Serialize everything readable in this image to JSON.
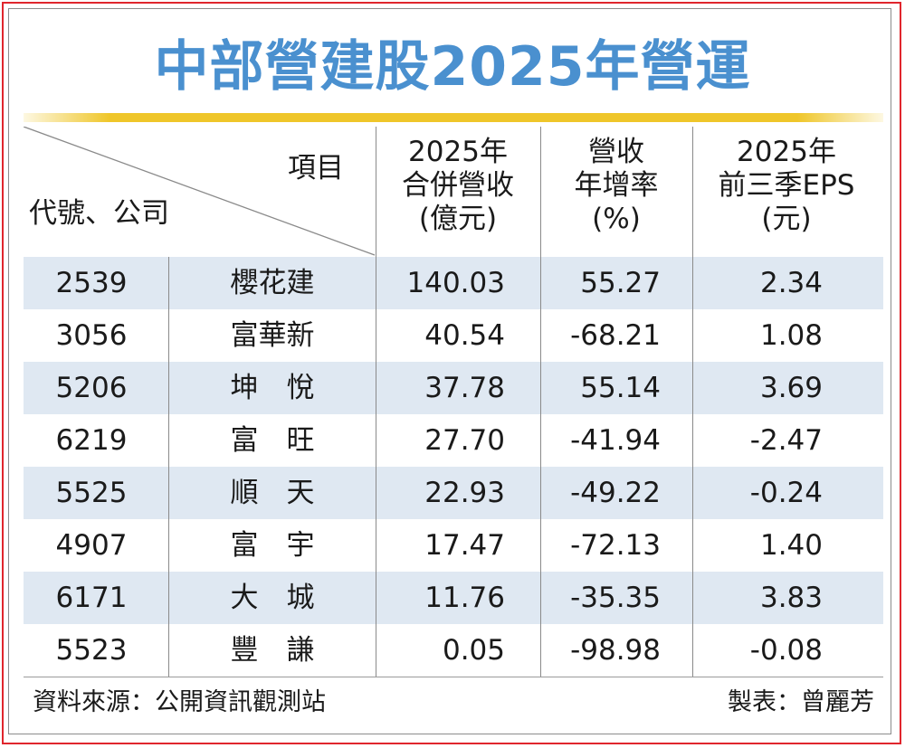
{
  "title": "中部營建股2025年營運",
  "header": {
    "corner_top": "項目",
    "corner_bottom": "代號、公司",
    "col_revenue": [
      "2025年",
      "合併營收",
      "(億元)"
    ],
    "col_growth": [
      "營收",
      "年增率",
      "(%)"
    ],
    "col_eps": [
      "2025年",
      "前三季EPS",
      "(元)"
    ]
  },
  "chart_data": {
    "type": "table",
    "title": "中部營建股2025年營運",
    "columns": [
      "代號",
      "公司",
      "2025年合併營收(億元)",
      "營收年增率(%)",
      "2025年前三季EPS(元)"
    ],
    "rows": [
      {
        "code": "2539",
        "name": "櫻花建",
        "revenue": "140.03",
        "growth": "55.27",
        "eps": "2.34"
      },
      {
        "code": "3056",
        "name": "富華新",
        "revenue": "40.54",
        "growth": "-68.21",
        "eps": "1.08"
      },
      {
        "code": "5206",
        "name": "坤　悅",
        "revenue": "37.78",
        "growth": "55.14",
        "eps": "3.69"
      },
      {
        "code": "6219",
        "name": "富　旺",
        "revenue": "27.70",
        "growth": "-41.94",
        "eps": "-2.47"
      },
      {
        "code": "5525",
        "name": "順　天",
        "revenue": "22.93",
        "growth": "-49.22",
        "eps": "-0.24"
      },
      {
        "code": "4907",
        "name": "富　宇",
        "revenue": "17.47",
        "growth": "-72.13",
        "eps": "1.40"
      },
      {
        "code": "6171",
        "name": "大　城",
        "revenue": "11.76",
        "growth": "-35.35",
        "eps": "3.83"
      },
      {
        "code": "5523",
        "name": "豐　謙",
        "revenue": "0.05",
        "growth": "-98.98",
        "eps": "-0.08"
      }
    ]
  },
  "footer": {
    "source": "資料來源：公開資訊觀測站",
    "author": "製表：曾麗芳"
  },
  "colors": {
    "title": "#4a90cf",
    "rule": "#efc62a",
    "row_shade": "#dfe8f2",
    "frame": "#e0262d"
  }
}
